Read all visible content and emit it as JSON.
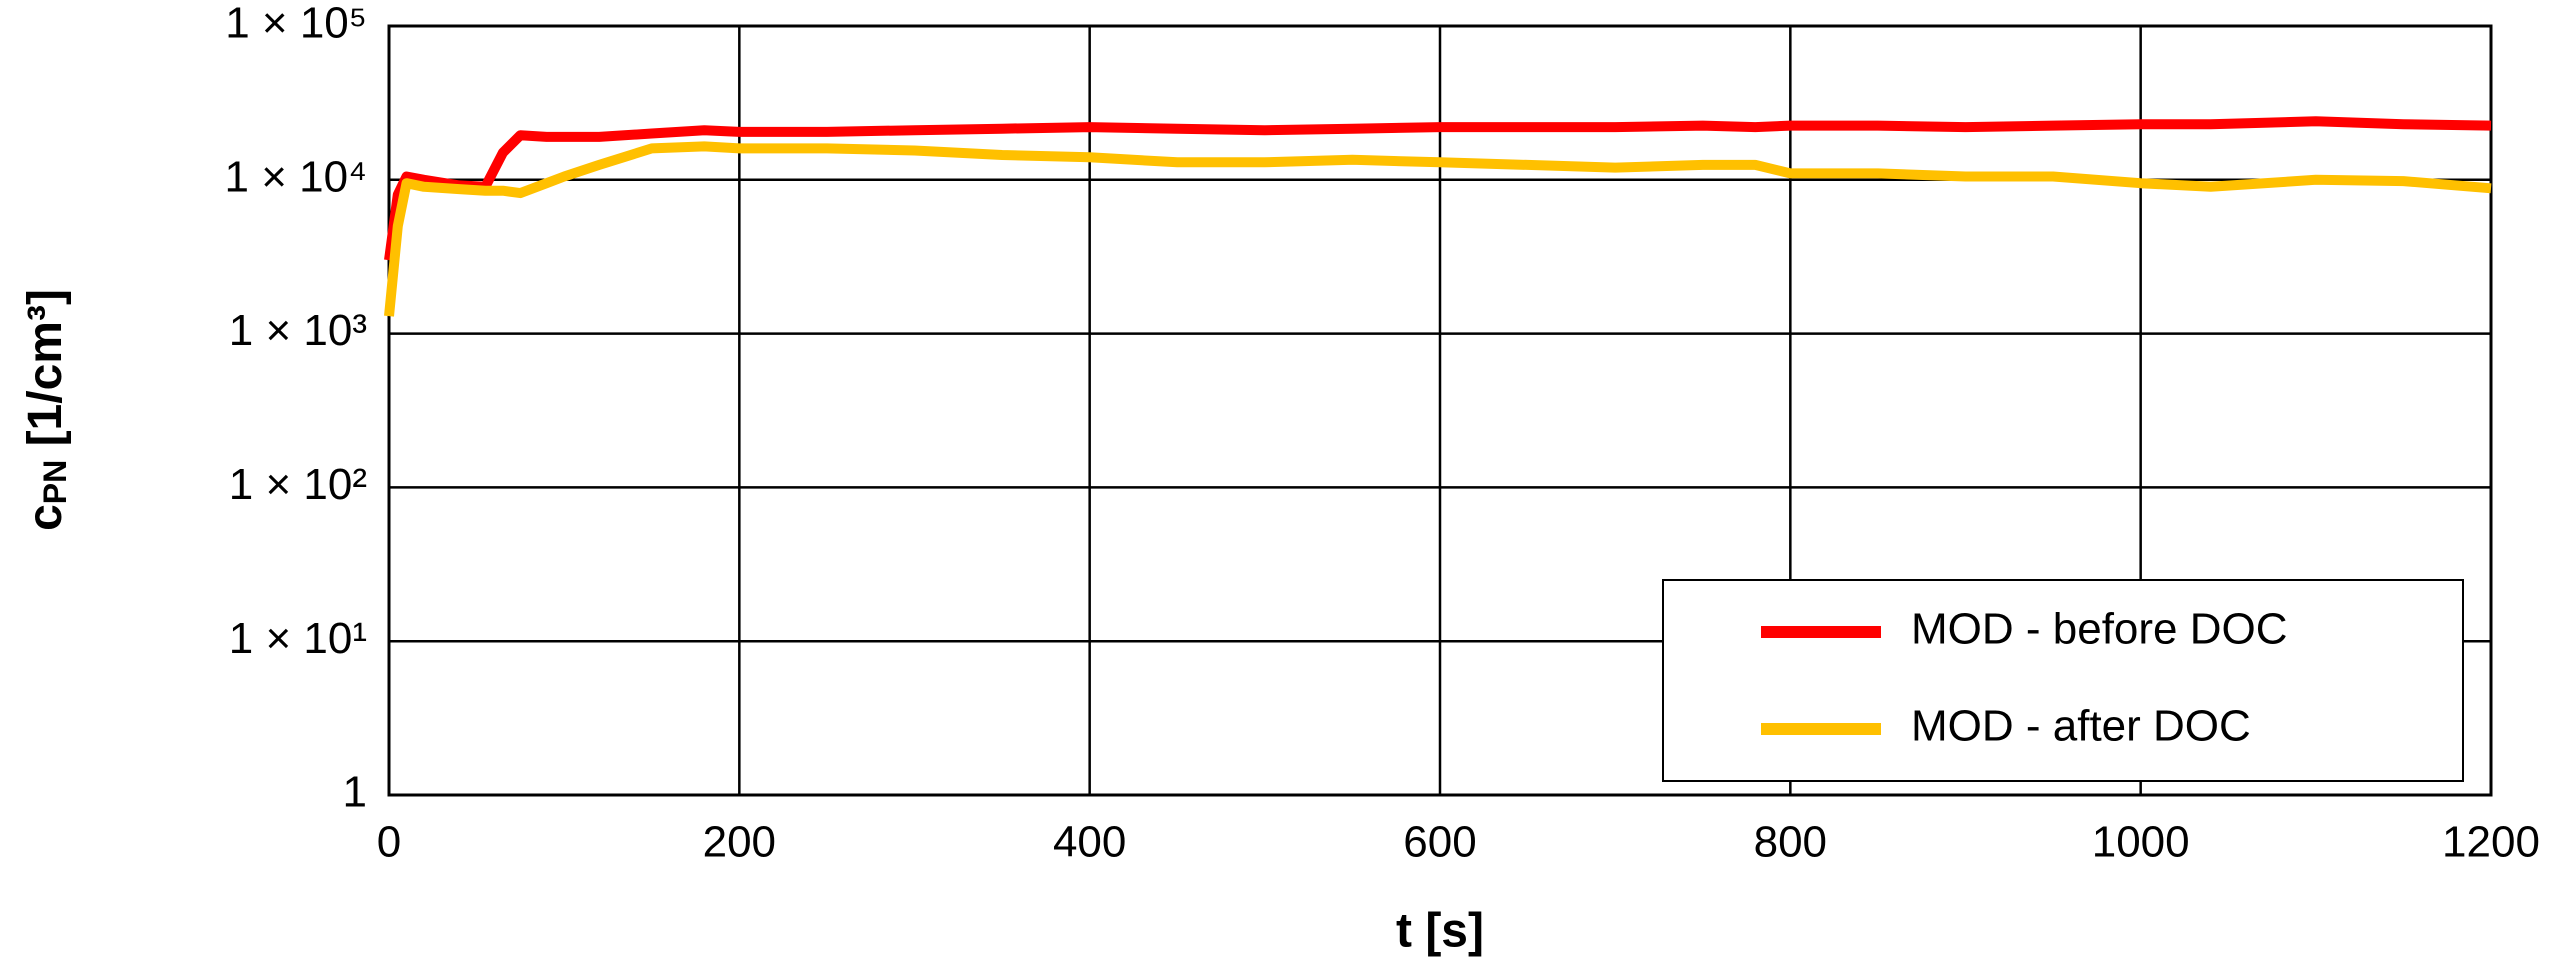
{
  "chart_data": {
    "type": "line",
    "xlabel": "t [s]",
    "ylabel": {
      "main": "c",
      "sub": "PN",
      "unit": " [1/cm³]"
    },
    "x": [
      0,
      5,
      10,
      20,
      40,
      55,
      65,
      75,
      90,
      100,
      120,
      150,
      180,
      200,
      250,
      300,
      350,
      400,
      450,
      500,
      550,
      600,
      650,
      700,
      750,
      780,
      800,
      850,
      900,
      950,
      1000,
      1040,
      1100,
      1150,
      1200
    ],
    "series": [
      {
        "name": "MOD - before DOC",
        "color": "#ff0000",
        "values": [
          3000,
          8000,
          10500,
          10000,
          9200,
          9000,
          15000,
          19500,
          19000,
          19000,
          19000,
          20000,
          21000,
          20500,
          20500,
          21000,
          21500,
          22000,
          21500,
          21000,
          21500,
          22000,
          22000,
          22000,
          22500,
          22000,
          22500,
          22500,
          22000,
          22500,
          23000,
          23000,
          24000,
          23000,
          22500
        ]
      },
      {
        "name": "MOD - after DOC",
        "color": "#ffc000",
        "values": [
          1300,
          5000,
          9500,
          9000,
          8700,
          8500,
          8500,
          8200,
          9500,
          10500,
          12500,
          16000,
          16500,
          16000,
          16000,
          15500,
          14500,
          14000,
          13000,
          13000,
          13500,
          13000,
          12500,
          12000,
          12500,
          12500,
          11000,
          11000,
          10500,
          10500,
          9500,
          9000,
          10000,
          9800,
          8800
        ]
      }
    ],
    "xlim": [
      0,
      1200
    ],
    "xticks": [
      0,
      200,
      400,
      600,
      800,
      1000,
      1200
    ],
    "ylim": [
      1,
      100000
    ],
    "log_y": true,
    "yticks": [
      1,
      {
        "value": 10,
        "label": "1 × 10¹"
      },
      {
        "value": 100,
        "label": "1 × 10²"
      },
      {
        "value": 1000,
        "label": "1 × 10³"
      },
      {
        "value": 10000,
        "label": "1 × 10⁴"
      },
      {
        "value": 100000,
        "label": "1 × 10⁵"
      }
    ],
    "grid": true,
    "legend": "lower right"
  }
}
